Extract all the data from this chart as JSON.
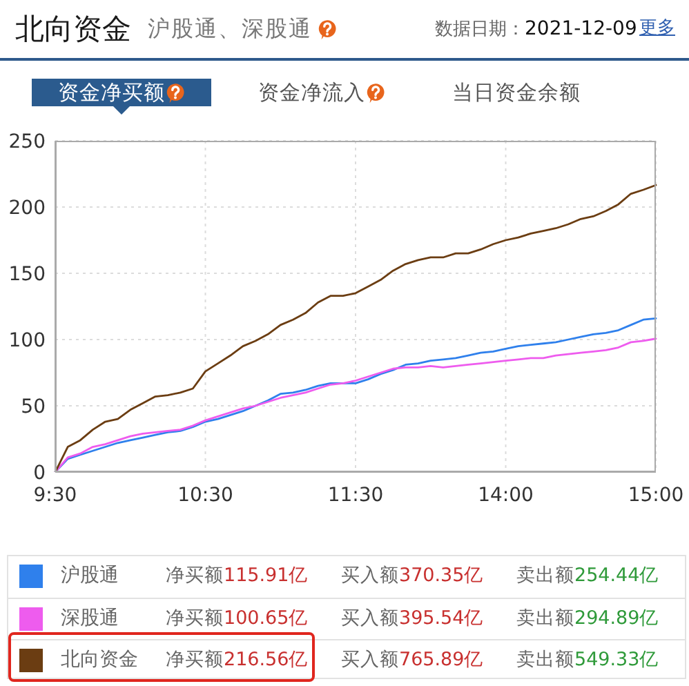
{
  "chart_data": {
    "type": "line",
    "title": "北向资金",
    "subtitle": "沪股通、深股通",
    "annotations": [
      "数据日期：2021-12-09",
      "更多",
      "资金净买额",
      "资金净流入",
      "当日资金余额",
      "净买额115.91亿",
      "买入额370.35亿",
      "卖出额254.44亿",
      "净买额100.65亿",
      "买入额395.54亿",
      "卖出额294.89亿",
      "净买额216.56亿",
      "买入额765.89亿",
      "卖出额549.33亿"
    ],
    "categories": [
      "9:30",
      null,
      null,
      null,
      null,
      null,
      null,
      null,
      null,
      null,
      null,
      null,
      "10:30",
      null,
      null,
      null,
      null,
      null,
      null,
      null,
      null,
      null,
      null,
      null,
      "11:30",
      null,
      null,
      null,
      null,
      null,
      null,
      null,
      null,
      null,
      null,
      null,
      "14:00",
      null,
      null,
      null,
      null,
      null,
      null,
      null,
      null,
      null,
      null,
      null,
      "15:00"
    ],
    "ylim": [
      0,
      250
    ],
    "yticks": [
      0,
      50,
      100,
      150,
      200,
      250
    ],
    "grid": true,
    "legend": "bottom",
    "marker": "none",
    "series": [
      {
        "name": "沪股通",
        "color": "#2f80ec",
        "values": [
          0,
          10,
          13,
          16,
          19,
          22,
          24,
          26,
          28,
          30,
          31,
          34,
          38,
          40,
          43,
          46,
          50,
          54,
          59,
          60,
          62,
          65,
          67,
          67,
          67,
          70,
          74,
          77,
          81,
          82,
          84,
          85,
          86,
          88,
          90,
          91,
          93,
          95,
          96,
          97,
          98,
          100,
          102,
          104,
          105,
          107,
          111,
          115,
          115.91
        ]
      },
      {
        "name": "深股通",
        "color": "#ee5cee",
        "values": [
          0,
          11,
          14,
          19,
          21,
          24,
          27,
          29,
          30,
          31,
          32,
          35,
          39,
          42,
          45,
          48,
          50,
          53,
          56,
          58,
          60,
          63,
          66,
          67,
          69,
          72,
          75,
          78,
          79,
          79,
          80,
          79,
          80,
          81,
          82,
          83,
          84,
          85,
          86,
          86,
          88,
          89,
          90,
          91,
          92,
          94,
          98,
          99,
          100.65
        ]
      },
      {
        "name": "北向资金",
        "color": "#6b3d12",
        "values": [
          0,
          19,
          24,
          32,
          38,
          40,
          47,
          52,
          57,
          58,
          60,
          63,
          76,
          82,
          88,
          95,
          99,
          104,
          111,
          115,
          120,
          128,
          133,
          133,
          135,
          140,
          145,
          152,
          157,
          160,
          162,
          162,
          165,
          165,
          168,
          172,
          175,
          177,
          180,
          182,
          184,
          187,
          191,
          193,
          197,
          202,
          210,
          213,
          216.56
        ]
      }
    ]
  }
}
